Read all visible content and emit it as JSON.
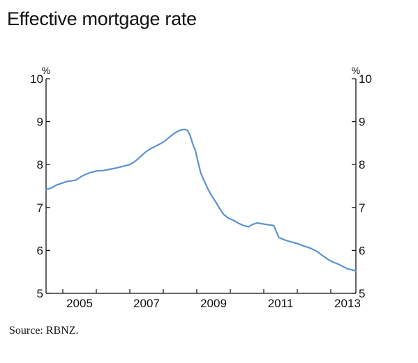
{
  "title": "Effective mortgage rate",
  "source": "Source: RBNZ.",
  "colors": {
    "line": "#5b92d0",
    "axis": "#111111"
  },
  "chart_data": {
    "type": "line",
    "title": "Effective mortgage rate",
    "xlabel": "",
    "ylabel": "%",
    "ylabel_right": "%",
    "xlim": [
      2004.5,
      2013.75
    ],
    "ylim": [
      5,
      10
    ],
    "y_ticks": [
      5,
      6,
      7,
      8,
      9,
      10
    ],
    "y_tick_labels": [
      "5",
      "6",
      "7",
      "8",
      "9",
      "10"
    ],
    "x_tick_labels": [
      "2005",
      "2007",
      "2009",
      "2011",
      "2013"
    ],
    "x_tick_label_years": [
      2005,
      2007,
      2009,
      2011,
      2013
    ],
    "x_year_ticks": [
      2005,
      2006,
      2007,
      2008,
      2009,
      2010,
      2011,
      2012,
      2013
    ],
    "grid": false,
    "legend": "none",
    "series": [
      {
        "points": [
          [
            2004.5,
            7.42
          ],
          [
            2004.65,
            7.45
          ],
          [
            2004.8,
            7.52
          ],
          [
            2004.95,
            7.56
          ],
          [
            2005.1,
            7.6
          ],
          [
            2005.25,
            7.62
          ],
          [
            2005.4,
            7.64
          ],
          [
            2005.55,
            7.72
          ],
          [
            2005.7,
            7.78
          ],
          [
            2005.85,
            7.82
          ],
          [
            2006.0,
            7.85
          ],
          [
            2006.2,
            7.86
          ],
          [
            2006.4,
            7.89
          ],
          [
            2006.6,
            7.92
          ],
          [
            2006.8,
            7.96
          ],
          [
            2007.0,
            8.0
          ],
          [
            2007.15,
            8.07
          ],
          [
            2007.3,
            8.17
          ],
          [
            2007.45,
            8.28
          ],
          [
            2007.6,
            8.36
          ],
          [
            2007.75,
            8.42
          ],
          [
            2007.9,
            8.48
          ],
          [
            2008.05,
            8.55
          ],
          [
            2008.2,
            8.65
          ],
          [
            2008.35,
            8.74
          ],
          [
            2008.5,
            8.8
          ],
          [
            2008.62,
            8.82
          ],
          [
            2008.72,
            8.8
          ],
          [
            2008.8,
            8.68
          ],
          [
            2008.88,
            8.48
          ],
          [
            2008.96,
            8.32
          ],
          [
            2009.04,
            8.05
          ],
          [
            2009.12,
            7.8
          ],
          [
            2009.22,
            7.62
          ],
          [
            2009.32,
            7.45
          ],
          [
            2009.42,
            7.3
          ],
          [
            2009.55,
            7.15
          ],
          [
            2009.68,
            6.98
          ],
          [
            2009.8,
            6.84
          ],
          [
            2009.95,
            6.75
          ],
          [
            2010.1,
            6.7
          ],
          [
            2010.25,
            6.63
          ],
          [
            2010.4,
            6.58
          ],
          [
            2010.55,
            6.55
          ],
          [
            2010.65,
            6.6
          ],
          [
            2010.8,
            6.64
          ],
          [
            2010.95,
            6.62
          ],
          [
            2011.1,
            6.6
          ],
          [
            2011.3,
            6.58
          ],
          [
            2011.45,
            6.3
          ],
          [
            2011.6,
            6.25
          ],
          [
            2011.8,
            6.2
          ],
          [
            2012.0,
            6.16
          ],
          [
            2012.2,
            6.1
          ],
          [
            2012.4,
            6.05
          ],
          [
            2012.6,
            5.97
          ],
          [
            2012.75,
            5.88
          ],
          [
            2012.9,
            5.8
          ],
          [
            2013.05,
            5.73
          ],
          [
            2013.2,
            5.69
          ],
          [
            2013.35,
            5.63
          ],
          [
            2013.5,
            5.57
          ],
          [
            2013.62,
            5.55
          ],
          [
            2013.75,
            5.52
          ]
        ]
      }
    ]
  }
}
